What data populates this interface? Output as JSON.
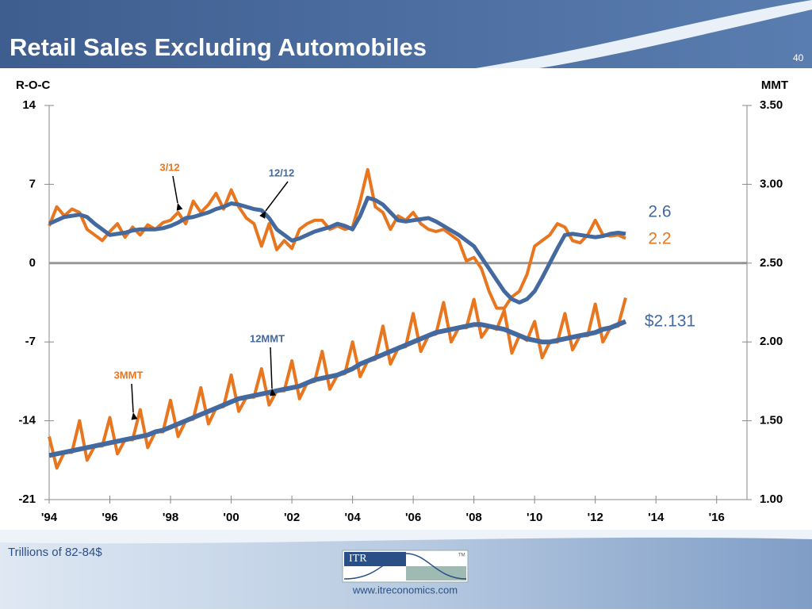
{
  "header": {
    "title": "Retail Sales Excluding Automobiles",
    "page_number": "40"
  },
  "chart_data": {
    "type": "line",
    "y_label": "R-O-C",
    "y2_label": "MMT",
    "x": [
      1994,
      1994.25,
      1994.5,
      1994.75,
      1995,
      1995.25,
      1995.5,
      1995.75,
      1996,
      1996.25,
      1996.5,
      1996.75,
      1997,
      1997.25,
      1997.5,
      1997.75,
      1998,
      1998.25,
      1998.5,
      1998.75,
      1999,
      1999.25,
      1999.5,
      1999.75,
      2000,
      2000.25,
      2000.5,
      2000.75,
      2001,
      2001.25,
      2001.5,
      2001.75,
      2002,
      2002.25,
      2002.5,
      2002.75,
      2003,
      2003.25,
      2003.5,
      2003.75,
      2004,
      2004.25,
      2004.5,
      2004.75,
      2005,
      2005.25,
      2005.5,
      2005.75,
      2006,
      2006.25,
      2006.5,
      2006.75,
      2007,
      2007.25,
      2007.5,
      2007.75,
      2008,
      2008.25,
      2008.5,
      2008.75,
      2009,
      2009.25,
      2009.5,
      2009.75,
      2010,
      2010.25,
      2010.5,
      2010.75,
      2011,
      2011.25,
      2011.5,
      2011.75,
      2012,
      2012.25,
      2012.5,
      2012.75,
      2013
    ],
    "series": [
      {
        "name": "3/12",
        "color": "#e8761e",
        "values": [
          3.3,
          5.0,
          4.2,
          4.8,
          4.5,
          3.0,
          2.5,
          2.0,
          2.8,
          3.5,
          2.3,
          3.2,
          2.5,
          3.4,
          3.0,
          3.6,
          3.8,
          4.5,
          3.5,
          5.5,
          4.5,
          5.2,
          6.2,
          4.8,
          6.5,
          5.0,
          4.0,
          3.5,
          1.5,
          3.5,
          1.2,
          2.0,
          1.3,
          3.0,
          3.5,
          3.8,
          3.8,
          3.0,
          3.3,
          3.0,
          3.2,
          5.5,
          8.3,
          5.0,
          4.5,
          3.0,
          4.2,
          3.8,
          4.5,
          3.5,
          3.0,
          2.8,
          3.0,
          2.5,
          2.0,
          0.2,
          0.5,
          -0.5,
          -2.5,
          -4.0,
          -4.0,
          -3.0,
          -2.5,
          -1.0,
          1.5,
          2.0,
          2.5,
          3.5,
          3.2,
          2.0,
          1.8,
          2.5,
          3.8,
          2.5,
          2.4,
          2.5,
          2.2
        ]
      },
      {
        "name": "12/12",
        "color": "#44699f",
        "values": [
          3.5,
          3.8,
          4.1,
          4.2,
          4.3,
          4.1,
          3.5,
          3.0,
          2.5,
          2.6,
          2.7,
          2.9,
          3.0,
          3.0,
          3.0,
          3.1,
          3.3,
          3.6,
          4.0,
          4.1,
          4.3,
          4.5,
          4.8,
          5.0,
          5.3,
          5.2,
          5.0,
          4.8,
          4.7,
          4.0,
          3.0,
          2.5,
          2.0,
          2.2,
          2.5,
          2.8,
          3.0,
          3.2,
          3.5,
          3.3,
          3.0,
          4.2,
          5.8,
          5.6,
          5.2,
          4.5,
          3.8,
          3.7,
          3.8,
          3.9,
          4.0,
          3.7,
          3.3,
          2.9,
          2.5,
          2.0,
          1.5,
          0.5,
          -0.5,
          -1.5,
          -2.5,
          -3.2,
          -3.5,
          -3.2,
          -2.5,
          -1.3,
          0,
          1.3,
          2.5,
          2.6,
          2.5,
          2.4,
          2.3,
          2.4,
          2.6,
          2.7,
          2.6
        ]
      },
      {
        "name": "3MMT",
        "color": "#e8761e",
        "axis": "y2",
        "values": [
          1.4,
          1.2,
          1.3,
          1.3,
          1.5,
          1.25,
          1.34,
          1.34,
          1.52,
          1.29,
          1.38,
          1.38,
          1.57,
          1.33,
          1.43,
          1.43,
          1.63,
          1.4,
          1.5,
          1.51,
          1.71,
          1.48,
          1.58,
          1.59,
          1.79,
          1.56,
          1.65,
          1.65,
          1.83,
          1.6,
          1.69,
          1.69,
          1.88,
          1.64,
          1.74,
          1.75,
          1.94,
          1.7,
          1.79,
          1.8,
          2.0,
          1.78,
          1.88,
          1.89,
          2.1,
          1.86,
          1.96,
          1.97,
          2.18,
          1.94,
          2.04,
          2.05,
          2.25,
          2.0,
          2.09,
          2.09,
          2.27,
          2.03,
          2.1,
          2.08,
          2.2,
          1.93,
          2.04,
          2.01,
          2.13,
          1.9,
          2.0,
          2.0,
          2.18,
          1.95,
          2.04,
          2.04,
          2.24,
          2.0,
          2.09,
          2.1,
          2.28
        ]
      },
      {
        "name": "12MMT",
        "color": "#44699f",
        "axis": "y2",
        "values": [
          1.28,
          1.29,
          1.3,
          1.31,
          1.32,
          1.33,
          1.34,
          1.35,
          1.36,
          1.37,
          1.38,
          1.39,
          1.4,
          1.41,
          1.43,
          1.44,
          1.46,
          1.48,
          1.5,
          1.52,
          1.54,
          1.56,
          1.58,
          1.6,
          1.62,
          1.64,
          1.65,
          1.66,
          1.67,
          1.68,
          1.69,
          1.7,
          1.71,
          1.72,
          1.74,
          1.76,
          1.77,
          1.78,
          1.79,
          1.81,
          1.83,
          1.86,
          1.88,
          1.9,
          1.92,
          1.94,
          1.96,
          1.98,
          2.0,
          2.02,
          2.04,
          2.06,
          2.07,
          2.08,
          2.09,
          2.1,
          2.11,
          2.11,
          2.1,
          2.09,
          2.08,
          2.06,
          2.04,
          2.02,
          2.01,
          2.0,
          2.0,
          2.01,
          2.02,
          2.03,
          2.04,
          2.05,
          2.06,
          2.08,
          2.09,
          2.11,
          2.13
        ]
      }
    ],
    "annotations": [
      "2.6",
      "2.2",
      "$2.131"
    ],
    "xlim": [
      1994,
      2017
    ],
    "xticks": [
      {
        "value": 1994,
        "label": "'94"
      },
      {
        "value": 1996,
        "label": "'96"
      },
      {
        "value": 1998,
        "label": "'98"
      },
      {
        "value": 2000,
        "label": "'00"
      },
      {
        "value": 2002,
        "label": "'02"
      },
      {
        "value": 2004,
        "label": "'04"
      },
      {
        "value": 2006,
        "label": "'06"
      },
      {
        "value": 2008,
        "label": "'08"
      },
      {
        "value": 2010,
        "label": "'10"
      },
      {
        "value": 2012,
        "label": "'12"
      },
      {
        "value": 2014,
        "label": "'14"
      },
      {
        "value": 2016,
        "label": "'16"
      }
    ],
    "ylim": [
      -21,
      14
    ],
    "yticks": [
      14,
      7,
      0,
      -7,
      -14,
      -21
    ],
    "y2lim": [
      1,
      3.5
    ],
    "y2ticks": [
      {
        "value": 3.5,
        "label": "3.50"
      },
      {
        "value": 3,
        "label": "3.00"
      },
      {
        "value": 2.5,
        "label": "2.50"
      },
      {
        "value": 2,
        "label": "2.00"
      },
      {
        "value": 1.5,
        "label": "1.50"
      },
      {
        "value": 1,
        "label": "1.00"
      }
    ]
  },
  "footer": {
    "note": "Trillions of 82-84$",
    "logo": "ITR",
    "trademark": "TM",
    "url": "www.itreconomics.com"
  }
}
